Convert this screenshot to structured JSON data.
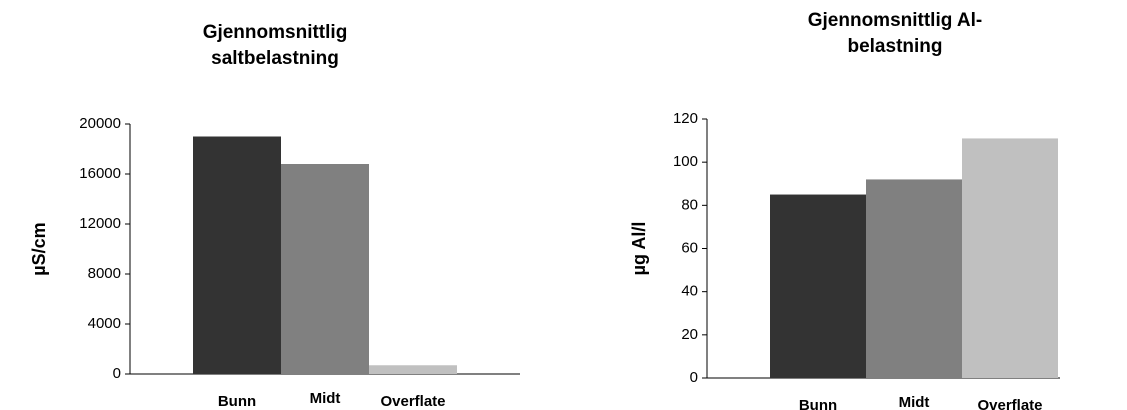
{
  "chart_data": [
    {
      "type": "bar",
      "title": "Gjennomsnittlig saltbelastning",
      "y_label": "µS/cm",
      "categories": [
        "Bunn",
        "Midt",
        "Overflate"
      ],
      "values": [
        19000,
        16800,
        700
      ],
      "colors": [
        "#333333",
        "#808080",
        "#c0c0c0"
      ],
      "ylim": [
        0,
        20000
      ],
      "yticks": [
        0,
        4000,
        8000,
        12000,
        16000,
        20000
      ]
    },
    {
      "type": "bar",
      "title": "Gjennomsnittlig Al-belastning",
      "y_label": "µg Al/l",
      "categories": [
        "Bunn",
        "Midt",
        "Overflate"
      ],
      "values": [
        85,
        92,
        111
      ],
      "colors": [
        "#333333",
        "#808080",
        "#c0c0c0"
      ],
      "ylim": [
        0,
        120
      ],
      "yticks": [
        0,
        20,
        40,
        60,
        80,
        100,
        120
      ]
    }
  ]
}
